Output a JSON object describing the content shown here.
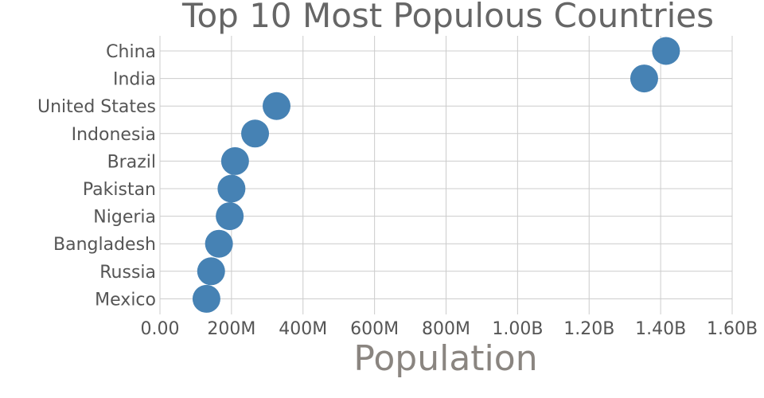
{
  "chart_data": {
    "type": "scatter",
    "title": "Top 10 Most Populous Countries",
    "xlabel": "Population",
    "ylabel": "",
    "xlim": [
      0,
      1600000000
    ],
    "x_ticks": [
      {
        "value": 0,
        "label": "0.00"
      },
      {
        "value": 200000000,
        "label": "200M"
      },
      {
        "value": 400000000,
        "label": "400M"
      },
      {
        "value": 600000000,
        "label": "600M"
      },
      {
        "value": 800000000,
        "label": "800M"
      },
      {
        "value": 1000000000,
        "label": "1.00B"
      },
      {
        "value": 1200000000,
        "label": "1.20B"
      },
      {
        "value": 1400000000,
        "label": "1.40B"
      },
      {
        "value": 1600000000,
        "label": "1.60B"
      }
    ],
    "categories": [
      "China",
      "India",
      "United States",
      "Indonesia",
      "Brazil",
      "Pakistan",
      "Nigeria",
      "Bangladesh",
      "Russia",
      "Mexico"
    ],
    "values": [
      1415000000,
      1354000000,
      326000000,
      266000000,
      210000000,
      200000000,
      195000000,
      165000000,
      143000000,
      130000000
    ],
    "grid": true,
    "marker_color": "#4682b4"
  }
}
